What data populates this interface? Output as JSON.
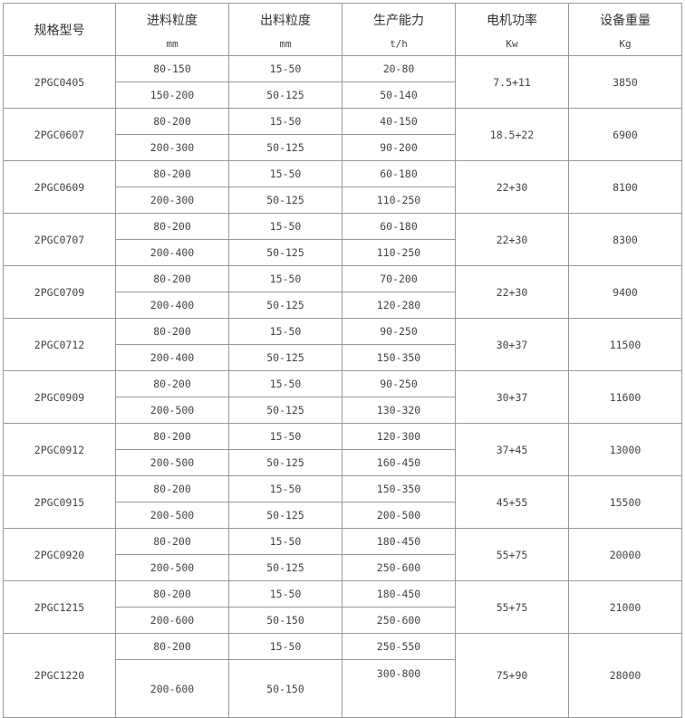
{
  "headers": [
    {
      "title": "规格型号",
      "unit": ""
    },
    {
      "title": "进料粒度",
      "unit": "mm"
    },
    {
      "title": "出料粒度",
      "unit": "mm"
    },
    {
      "title": "生产能力",
      "unit": "t/h"
    },
    {
      "title": "电机功率",
      "unit": "Kw"
    },
    {
      "title": "设备重量",
      "unit": "Kg"
    }
  ],
  "rows": [
    {
      "model": "2PGC0405",
      "power": "7.5+11",
      "weight": "3850",
      "sub": [
        {
          "feed": "80-150",
          "out": "15-50",
          "cap": "20-80"
        },
        {
          "feed": "150-200",
          "out": "50-125",
          "cap": "50-140"
        }
      ]
    },
    {
      "model": "2PGC0607",
      "power": "18.5+22",
      "weight": "6900",
      "sub": [
        {
          "feed": "80-200",
          "out": "15-50",
          "cap": "40-150"
        },
        {
          "feed": "200-300",
          "out": "50-125",
          "cap": "90-200"
        }
      ]
    },
    {
      "model": "2PGC0609",
      "power": "22+30",
      "weight": "8100",
      "sub": [
        {
          "feed": "80-200",
          "out": "15-50",
          "cap": "60-180"
        },
        {
          "feed": "200-300",
          "out": "50-125",
          "cap": "110-250"
        }
      ]
    },
    {
      "model": "2PGC0707",
      "power": "22+30",
      "weight": "8300",
      "sub": [
        {
          "feed": "80-200",
          "out": "15-50",
          "cap": "60-180"
        },
        {
          "feed": "200-400",
          "out": "50-125",
          "cap": "110-250"
        }
      ]
    },
    {
      "model": "2PGC0709",
      "power": "22+30",
      "weight": "9400",
      "sub": [
        {
          "feed": "80-200",
          "out": "15-50",
          "cap": "70-200"
        },
        {
          "feed": "200-400",
          "out": "50-125",
          "cap": "120-280"
        }
      ]
    },
    {
      "model": "2PGC0712",
      "power": "30+37",
      "weight": "11500",
      "sub": [
        {
          "feed": "80-200",
          "out": "15-50",
          "cap": "90-250"
        },
        {
          "feed": "200-400",
          "out": "50-125",
          "cap": "150-350"
        }
      ]
    },
    {
      "model": "2PGC0909",
      "power": "30+37",
      "weight": "11600",
      "sub": [
        {
          "feed": "80-200",
          "out": "15-50",
          "cap": "90-250"
        },
        {
          "feed": "200-500",
          "out": "50-125",
          "cap": "130-320"
        }
      ]
    },
    {
      "model": "2PGC0912",
      "power": "37+45",
      "weight": "13000",
      "sub": [
        {
          "feed": "80-200",
          "out": "15-50",
          "cap": "120-300"
        },
        {
          "feed": "200-500",
          "out": "50-125",
          "cap": "160-450"
        }
      ]
    },
    {
      "model": "2PGC0915",
      "power": "45+55",
      "weight": "15500",
      "sub": [
        {
          "feed": "80-200",
          "out": "15-50",
          "cap": "150-350"
        },
        {
          "feed": "200-500",
          "out": "50-125",
          "cap": "200-500"
        }
      ]
    },
    {
      "model": "2PGC0920",
      "power": "55+75",
      "weight": "20000",
      "sub": [
        {
          "feed": "80-200",
          "out": "15-50",
          "cap": "180-450"
        },
        {
          "feed": "200-500",
          "out": "50-125",
          "cap": "250-600"
        }
      ]
    },
    {
      "model": "2PGC1215",
      "power": "55+75",
      "weight": "21000",
      "sub": [
        {
          "feed": "80-200",
          "out": "15-50",
          "cap": "180-450"
        },
        {
          "feed": "200-600",
          "out": "50-150",
          "cap": "250-600"
        }
      ]
    },
    {
      "model": "2PGC1220",
      "power": "75+90",
      "weight": "28000",
      "sub": [
        {
          "feed": "80-200",
          "out": "15-50",
          "cap": "250-550"
        },
        {
          "feed": "200-600",
          "out": "50-150",
          "cap": "300-800"
        }
      ]
    }
  ]
}
